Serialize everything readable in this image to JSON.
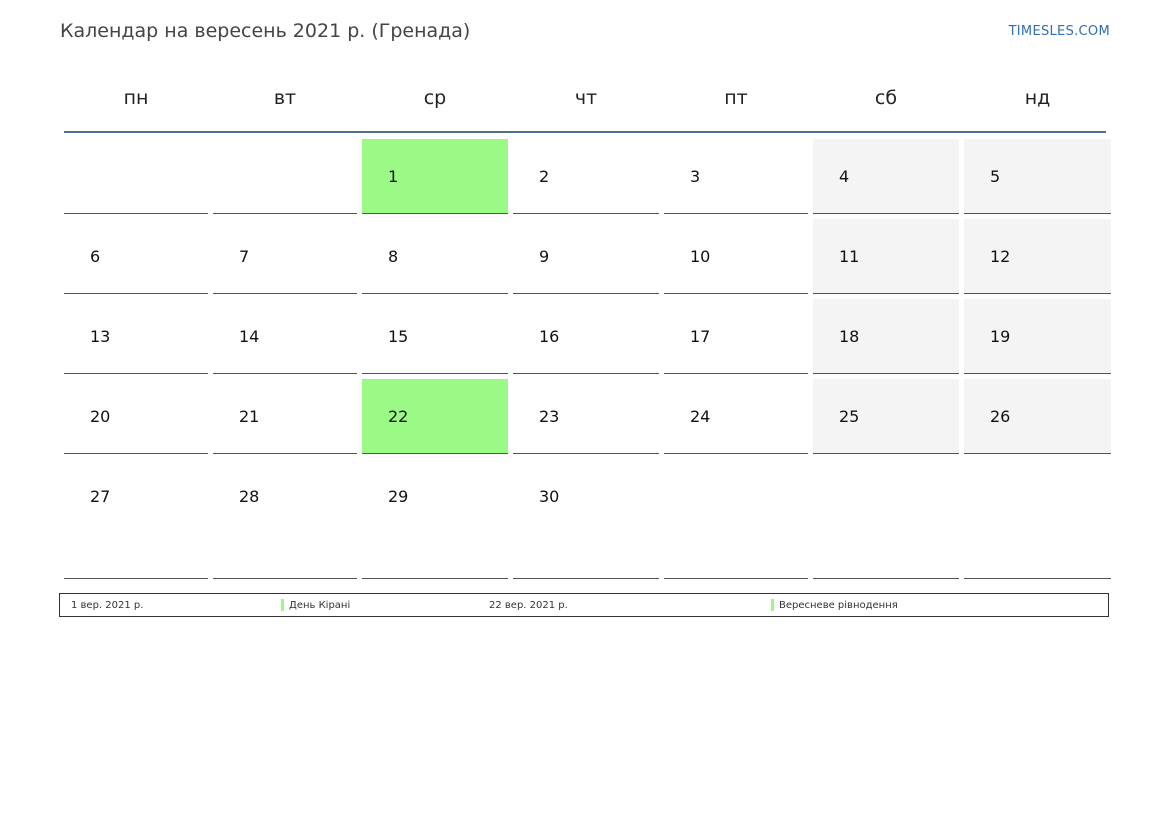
{
  "title": "Календар на вересень 2021 р. (Гренада)",
  "brand": "TIMESLES.COM",
  "colors": {
    "holiday": "#9bfa85",
    "weekend": "#f4f4f4",
    "header_line": "#4f6e96",
    "brand": "#2f6fb3"
  },
  "weekdays": [
    "пн",
    "вт",
    "ср",
    "чт",
    "пт",
    "сб",
    "нд"
  ],
  "weeks": [
    [
      {
        "day": "",
        "type": "empty"
      },
      {
        "day": "",
        "type": "empty"
      },
      {
        "day": "1",
        "type": "holiday"
      },
      {
        "day": "2",
        "type": "normal"
      },
      {
        "day": "3",
        "type": "normal"
      },
      {
        "day": "4",
        "type": "weekend"
      },
      {
        "day": "5",
        "type": "weekend"
      }
    ],
    [
      {
        "day": "6",
        "type": "normal"
      },
      {
        "day": "7",
        "type": "normal"
      },
      {
        "day": "8",
        "type": "normal"
      },
      {
        "day": "9",
        "type": "normal"
      },
      {
        "day": "10",
        "type": "normal"
      },
      {
        "day": "11",
        "type": "weekend"
      },
      {
        "day": "12",
        "type": "weekend"
      }
    ],
    [
      {
        "day": "13",
        "type": "normal"
      },
      {
        "day": "14",
        "type": "normal"
      },
      {
        "day": "15",
        "type": "normal"
      },
      {
        "day": "16",
        "type": "normal"
      },
      {
        "day": "17",
        "type": "normal"
      },
      {
        "day": "18",
        "type": "weekend"
      },
      {
        "day": "19",
        "type": "weekend"
      }
    ],
    [
      {
        "day": "20",
        "type": "normal"
      },
      {
        "day": "21",
        "type": "normal"
      },
      {
        "day": "22",
        "type": "holiday"
      },
      {
        "day": "23",
        "type": "normal"
      },
      {
        "day": "24",
        "type": "normal"
      },
      {
        "day": "25",
        "type": "weekend"
      },
      {
        "day": "26",
        "type": "weekend"
      }
    ],
    [
      {
        "day": "27",
        "type": "normal"
      },
      {
        "day": "28",
        "type": "normal"
      },
      {
        "day": "29",
        "type": "normal"
      },
      {
        "day": "30",
        "type": "normal"
      },
      {
        "day": "",
        "type": "empty"
      },
      {
        "day": "",
        "type": "empty"
      },
      {
        "day": "",
        "type": "empty"
      }
    ]
  ],
  "legend": [
    {
      "date": "1 вер. 2021 р.",
      "name": "День Кірані"
    },
    {
      "date": "22 вер. 2021 р.",
      "name": "Вересневе рівнодення"
    }
  ]
}
